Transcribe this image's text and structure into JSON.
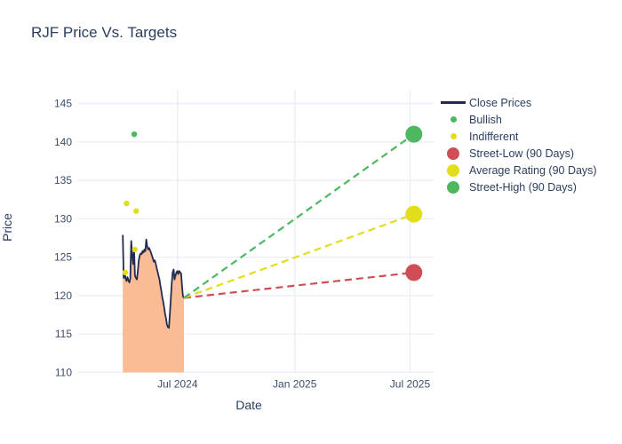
{
  "chart_data": {
    "type": "line",
    "title": "RJF Price Vs. Targets",
    "xlabel": "Date",
    "ylabel": "Price",
    "ylim": [
      110,
      146.8
    ],
    "xlim_dates": [
      "2024-01-27",
      "2025-08-07"
    ],
    "yticks": [
      110,
      115,
      120,
      125,
      130,
      135,
      140,
      145
    ],
    "xticks": [
      {
        "date": "2024-07-01",
        "label": "Jul 2024"
      },
      {
        "date": "2025-01-01",
        "label": "Jan 2025"
      },
      {
        "date": "2025-07-01",
        "label": "Jul 2025"
      }
    ],
    "grid": true,
    "legend_position": "right",
    "series": [
      {
        "id": "close_prices",
        "name": "Close Prices",
        "type": "line-area",
        "color": "#232c4e",
        "fill_color": "#f9bc94",
        "x_start": "2024-04-06",
        "x_end": "2024-07-11",
        "values": [
          127.9,
          122.3,
          123.0,
          122.2,
          121.9,
          122.4,
          122.0,
          121.7,
          122.2,
          127.1,
          125.2,
          124.1,
          126.0,
          122.6,
          122.3,
          122.1,
          123.2,
          124.6,
          125.2,
          125.5,
          125.4,
          125.8,
          125.6,
          126.0,
          125.8,
          127.3,
          126.4,
          126.0,
          126.2,
          125.9,
          125.6,
          125.2,
          124.8,
          124.4,
          124.6,
          124.2,
          123.6,
          123.1,
          122.6,
          122.1,
          121.3,
          120.6,
          119.8,
          119.2,
          118.4,
          117.6,
          117.0,
          116.2,
          115.9,
          115.8,
          117.5,
          119.5,
          121.5,
          123.0,
          123.4,
          122.1,
          122.6,
          123.0,
          123.2,
          122.8,
          123.2,
          123.0,
          122.9,
          121.2,
          119.9,
          119.7
        ]
      },
      {
        "id": "bullish",
        "name": "Bullish",
        "type": "scatter-small",
        "color": "#4db860",
        "points": [
          [
            "2024-04-24",
            141.0
          ]
        ]
      },
      {
        "id": "indifferent",
        "name": "Indifferent",
        "type": "scatter-small",
        "color": "#e1de1d",
        "points": [
          [
            "2024-04-10",
            123.0
          ],
          [
            "2024-04-12",
            132.0
          ],
          [
            "2024-04-25",
            126.0
          ],
          [
            "2024-04-27",
            131.0
          ]
        ]
      },
      {
        "id": "street_low",
        "name": "Street-Low (90 Days)",
        "type": "target",
        "color": "#cf4e56",
        "dash_from": [
          "2024-07-11",
          119.7
        ],
        "point": [
          "2025-07-07",
          123.0
        ]
      },
      {
        "id": "average_rating",
        "name": "Average Rating (90 Days)",
        "type": "target",
        "color": "#e1de1d",
        "dash_from": [
          "2024-07-11",
          119.7
        ],
        "point": [
          "2025-07-07",
          130.6
        ]
      },
      {
        "id": "street_high",
        "name": "Street-High (90 Days)",
        "type": "target",
        "color": "#4db860",
        "dash_from": [
          "2024-07-11",
          119.7
        ],
        "point": [
          "2025-07-07",
          141.0
        ]
      }
    ],
    "legend": [
      {
        "series": "close_prices",
        "label": "Close Prices",
        "marker": "line",
        "color": "#232c4e"
      },
      {
        "series": "bullish",
        "label": "Bullish",
        "marker": "dot-small",
        "color": "#4db860"
      },
      {
        "series": "indifferent",
        "label": "Indifferent",
        "marker": "dot-small",
        "color": "#e1de1d"
      },
      {
        "series": "street_low",
        "label": "Street-Low (90 Days)",
        "marker": "dot-large",
        "color": "#cf4e56"
      },
      {
        "series": "average_rating",
        "label": "Average Rating (90 Days)",
        "marker": "dot-large",
        "color": "#e1de1d"
      },
      {
        "series": "street_high",
        "label": "Street-High (90 Days)",
        "marker": "dot-large",
        "color": "#4db860"
      }
    ],
    "colors": {
      "title_text": "#2a3f5f",
      "tick_text": "#3d4d6b",
      "grid": "#e9eef7",
      "background": "#ffffff",
      "area_fill": "#f9bc94",
      "close_line": "#232c4e",
      "bullish_green": "#4db860",
      "indifferent_yellow": "#e1de1d",
      "street_low_red": "#cf4e56"
    }
  }
}
